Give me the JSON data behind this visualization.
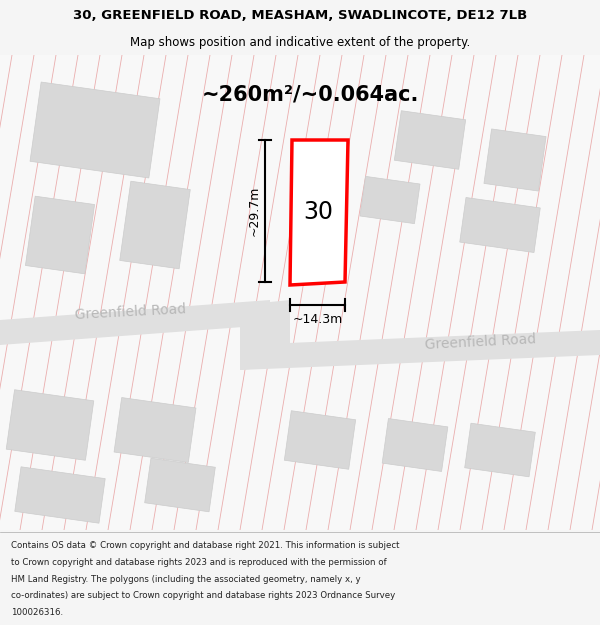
{
  "title_line1": "30, GREENFIELD ROAD, MEASHAM, SWADLINCOTE, DE12 7LB",
  "title_line2": "Map shows position and indicative extent of the property.",
  "area_text": "~260m²/~0.064ac.",
  "label_30": "30",
  "dim_height": "~29.7m",
  "dim_width": "~14.3m",
  "road_label1": "Greenfield Road",
  "road_label2": "Greenfield Road",
  "footer_text": "Contains OS data © Crown copyright and database right 2021. This information is subject to Crown copyright and database rights 2023 and is reproduced with the permission of HM Land Registry. The polygons (including the associated geometry, namely x, y co-ordinates) are subject to Crown copyright and database rights 2023 Ordnance Survey 100026316.",
  "bg_color": "#f5f5f5",
  "map_bg": "#f8f8f8",
  "road_color": "#e0e0e0",
  "building_color": "#d8d8d8",
  "building_edge": "#cccccc",
  "highlight_color": "#ff0000",
  "highlight_fill": "#ffffff",
  "grid_line_color": "#e8a0a0",
  "road_label_color": "#b8b8b8",
  "dim_line_color": "#000000",
  "text_color": "#000000",
  "footer_text_color": "#222222",
  "title_fontsize": 9.5,
  "subtitle_fontsize": 8.5,
  "area_fontsize": 15,
  "label_fontsize": 17,
  "dim_fontsize": 9,
  "road_label_fontsize": 10,
  "footer_fontsize": 6.2
}
